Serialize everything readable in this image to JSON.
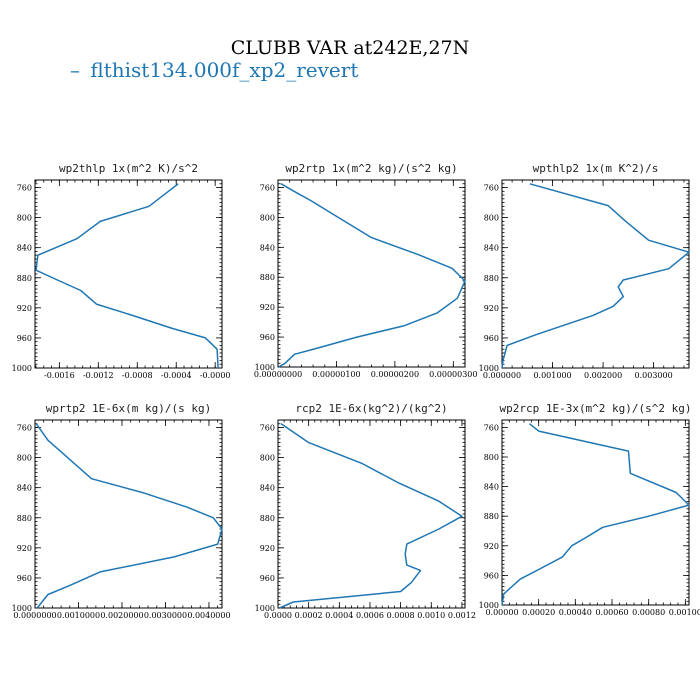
{
  "figure": {
    "title": "CLUBB VAR at242E,27N",
    "legend": [
      {
        "name": "flthist134.000f_xp2_revert",
        "color": "#1f77b4",
        "marker": "–"
      }
    ]
  },
  "chart_data": [
    {
      "type": "line",
      "title": "wp2thlp  1x(m^2 K)/s^2",
      "xlim": [
        -0.00185,
        7e-05
      ],
      "ylim": [
        1000,
        750
      ],
      "xticks": [
        "-0.0016",
        "-0.0012",
        "-0.0008",
        "-0.0004",
        "-0.0000"
      ],
      "xtick_values": [
        -0.0016,
        -0.0012,
        -0.0008,
        -0.0004,
        0.0
      ],
      "yticks": [
        760,
        800,
        840,
        880,
        920,
        960,
        1000
      ],
      "series": [
        {
          "color": "#1f77b4",
          "x": [
            -0.00038,
            -0.00068,
            -0.00118,
            -0.00142,
            -0.00182,
            -0.00184,
            -0.00162,
            -0.00138,
            -0.00122,
            -0.00085,
            -0.00045,
            -0.0001,
            2e-05,
            3e-05
          ],
          "y": [
            755,
            785,
            805,
            828,
            850,
            870,
            883,
            897,
            915,
            930,
            947,
            960,
            975,
            1000
          ]
        }
      ]
    },
    {
      "type": "line",
      "title": "wp2rtp  1x(m^2 kg)/(s^2 kg)",
      "xlim": [
        0,
        3.2e-06
      ],
      "ylim": [
        1000,
        750
      ],
      "xticks": [
        "0.00000000",
        "0.00000100",
        "0.00000200",
        "0.00000300"
      ],
      "xtick_values": [
        0,
        1e-06,
        2e-06,
        3e-06
      ],
      "yticks": [
        760,
        800,
        840,
        880,
        920,
        960,
        1000
      ],
      "series": [
        {
          "color": "#1f77b4",
          "x": [
            5e-08,
            2.7e-07,
            5.7e-07,
            1.03e-06,
            1.6e-06,
            2.41e-06,
            2.98e-06,
            3.2e-06,
            3.07e-06,
            2.72e-06,
            2.15e-06,
            1.35e-06,
            6.2e-07,
            2.8e-07,
            1.2e-07,
            1e-08
          ],
          "y": [
            755,
            765,
            778,
            800,
            827,
            850,
            868,
            885,
            908,
            928,
            945,
            960,
            976,
            983,
            995,
            1000
          ]
        }
      ]
    },
    {
      "type": "line",
      "title": "wpthlp2  1x(m K^2)/s",
      "xlim": [
        0,
        0.0037
      ],
      "ylim": [
        1000,
        750
      ],
      "xticks": [
        "0.000000",
        "0.001000",
        "0.002000",
        "0.003000"
      ],
      "xtick_values": [
        0,
        0.001,
        0.002,
        0.003
      ],
      "yticks": [
        760,
        800,
        840,
        880,
        920,
        960,
        1000
      ],
      "series": [
        {
          "color": "#1f77b4",
          "x": [
            0.00055,
            0.0021,
            0.00245,
            0.0029,
            0.0037,
            0.0033,
            0.0024,
            0.0023,
            0.0024,
            0.0022,
            0.0018,
            0.0007,
            0.0001,
            2e-05,
            0.0
          ],
          "y": [
            755,
            784,
            805,
            830,
            846,
            868,
            883,
            892,
            905,
            918,
            930,
            955,
            970,
            990,
            1000
          ]
        }
      ]
    },
    {
      "type": "line",
      "title": "wprtp2  1E-6x(m kg)/(s kg)",
      "xlim": [
        0,
        0.0043
      ],
      "ylim": [
        1000,
        750
      ],
      "xticks": [
        "0.0000000",
        "0.0010000",
        "0.0020000",
        "0.0030000",
        "0.0040000"
      ],
      "xtick_values": [
        0,
        0.001,
        0.002,
        0.003,
        0.004
      ],
      "yticks": [
        760,
        800,
        840,
        880,
        920,
        960,
        1000
      ],
      "series": [
        {
          "color": "#1f77b4",
          "x": [
            3e-05,
            0.0003,
            0.00075,
            0.0013,
            0.0025,
            0.0035,
            0.0041,
            0.0043,
            0.0042,
            0.0032,
            0.0015,
            0.0008,
            0.0003,
            5e-05
          ],
          "y": [
            755,
            777,
            800,
            828,
            847,
            866,
            880,
            895,
            915,
            932,
            952,
            970,
            982,
            1000
          ]
        }
      ]
    },
    {
      "type": "line",
      "title": "rcp2  1E-6x(kg^2)/(kg^2)",
      "xlim": [
        0,
        0.00122
      ],
      "ylim": [
        1000,
        750
      ],
      "xticks": [
        "0.0000",
        "0.0002",
        "0.0004",
        "0.0006",
        "0.0008",
        "0.0010",
        "0.0012"
      ],
      "xtick_values": [
        0,
        0.0002,
        0.0004,
        0.0006,
        0.0008,
        0.001,
        0.0012
      ],
      "yticks": [
        760,
        800,
        840,
        880,
        920,
        960,
        1000
      ],
      "series": [
        {
          "color": "#1f77b4",
          "x": [
            2e-05,
            0.0002,
            0.00055,
            0.00078,
            0.00105,
            0.0012,
            0.00105,
            0.00084,
            0.00083,
            0.00084,
            0.00093,
            0.00087,
            0.0008,
            0.0001,
            1e-05
          ],
          "y": [
            755,
            780,
            808,
            833,
            858,
            878,
            895,
            915,
            928,
            943,
            950,
            966,
            978,
            992,
            1000
          ]
        }
      ]
    },
    {
      "type": "line",
      "title": "wp2rcp  1E-3x(m^2 kg)/(s^2 kg)",
      "xlim": [
        0,
        0.00102
      ],
      "ylim": [
        1000,
        750
      ],
      "xticks": [
        "0.00000",
        "0.00020",
        "0.00040",
        "0.00060",
        "0.00080",
        "0.00100"
      ],
      "xtick_values": [
        0,
        0.0002,
        0.0004,
        0.0006,
        0.0008,
        0.001
      ],
      "yticks": [
        760,
        800,
        840,
        880,
        920,
        960,
        1000
      ],
      "series": [
        {
          "color": "#1f77b4",
          "x": [
            0.00015,
            0.0002,
            0.00069,
            0.0007,
            0.00095,
            0.00102,
            0.0008,
            0.00055,
            0.00045,
            0.00038,
            0.00033,
            0.0002,
            0.0001,
            1e-05,
            0.0
          ],
          "y": [
            755,
            765,
            792,
            822,
            848,
            865,
            880,
            895,
            910,
            920,
            935,
            952,
            965,
            985,
            1000
          ]
        }
      ]
    }
  ]
}
